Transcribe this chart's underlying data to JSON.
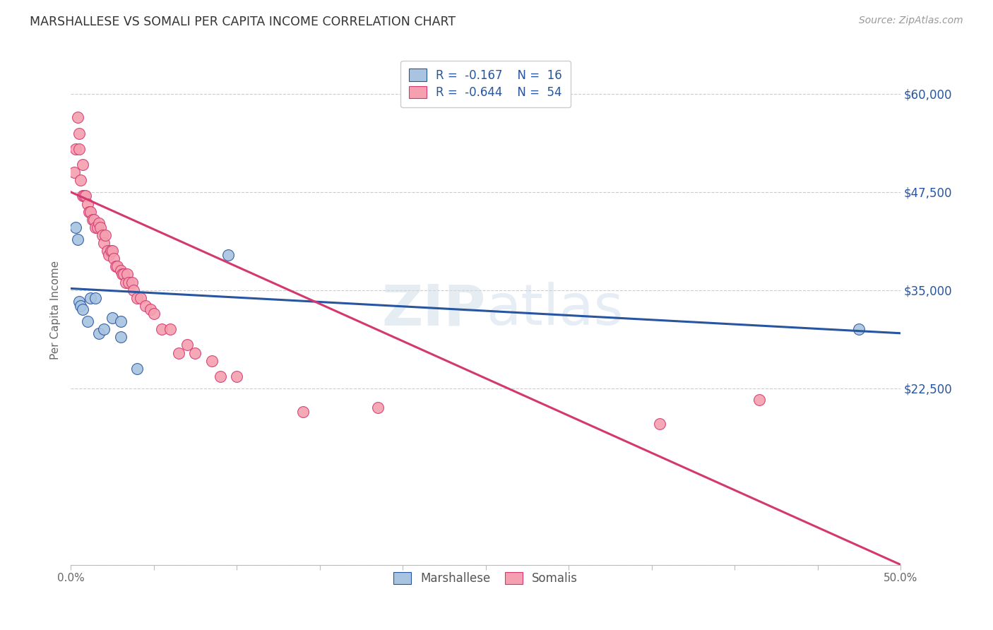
{
  "title": "MARSHALLESE VS SOMALI PER CAPITA INCOME CORRELATION CHART",
  "source": "Source: ZipAtlas.com",
  "ylabel": "Per Capita Income",
  "xlim": [
    0.0,
    0.5
  ],
  "ylim": [
    0,
    65000
  ],
  "yticks": [
    0,
    22500,
    35000,
    47500,
    60000
  ],
  "ytick_labels": [
    "",
    "$22,500",
    "$35,000",
    "$47,500",
    "$60,000"
  ],
  "xticks": [
    0.0,
    0.05,
    0.1,
    0.15,
    0.2,
    0.25,
    0.3,
    0.35,
    0.4,
    0.45,
    0.5
  ],
  "xtick_labels": [
    "0.0%",
    "",
    "",
    "",
    "",
    "",
    "",
    "",
    "",
    "",
    "50.0%"
  ],
  "grid_color": "#cccccc",
  "bg_color": "#ffffff",
  "marshallese_color": "#a8c4e0",
  "somali_color": "#f4a0b0",
  "marshallese_line_color": "#2855a0",
  "somali_line_color": "#d43870",
  "legend_r_marshallese": "R =  -0.167",
  "legend_n_marshallese": "N =  16",
  "legend_r_somali": "R =  -0.644",
  "legend_n_somali": "N =  54",
  "marshallese_x": [
    0.003,
    0.004,
    0.005,
    0.006,
    0.007,
    0.01,
    0.012,
    0.015,
    0.017,
    0.02,
    0.025,
    0.03,
    0.03,
    0.04,
    0.095,
    0.475
  ],
  "marshallese_y": [
    43000,
    41500,
    33500,
    33000,
    32500,
    31000,
    34000,
    34000,
    29500,
    30000,
    31500,
    31000,
    29000,
    25000,
    39500,
    30000
  ],
  "somali_x": [
    0.002,
    0.003,
    0.004,
    0.005,
    0.005,
    0.006,
    0.007,
    0.007,
    0.008,
    0.009,
    0.01,
    0.011,
    0.012,
    0.013,
    0.014,
    0.015,
    0.016,
    0.017,
    0.018,
    0.019,
    0.02,
    0.021,
    0.022,
    0.023,
    0.024,
    0.025,
    0.026,
    0.027,
    0.028,
    0.03,
    0.031,
    0.032,
    0.033,
    0.034,
    0.035,
    0.037,
    0.038,
    0.04,
    0.042,
    0.045,
    0.048,
    0.05,
    0.055,
    0.06,
    0.065,
    0.07,
    0.075,
    0.085,
    0.09,
    0.1,
    0.14,
    0.185,
    0.355,
    0.415
  ],
  "somali_y": [
    50000,
    53000,
    57000,
    55000,
    53000,
    49000,
    51000,
    47000,
    47000,
    47000,
    46000,
    45000,
    45000,
    44000,
    44000,
    43000,
    43000,
    43500,
    43000,
    42000,
    41000,
    42000,
    40000,
    39500,
    40000,
    40000,
    39000,
    38000,
    38000,
    37500,
    37000,
    37000,
    36000,
    37000,
    36000,
    36000,
    35000,
    34000,
    34000,
    33000,
    32500,
    32000,
    30000,
    30000,
    27000,
    28000,
    27000,
    26000,
    24000,
    24000,
    19500,
    20000,
    18000,
    21000
  ],
  "blue_line_x0": 0.0,
  "blue_line_y0": 35200,
  "blue_line_x1": 0.5,
  "blue_line_y1": 29500,
  "pink_line_x0": 0.0,
  "pink_line_y0": 47500,
  "pink_line_x1": 0.5,
  "pink_line_y1": 0
}
